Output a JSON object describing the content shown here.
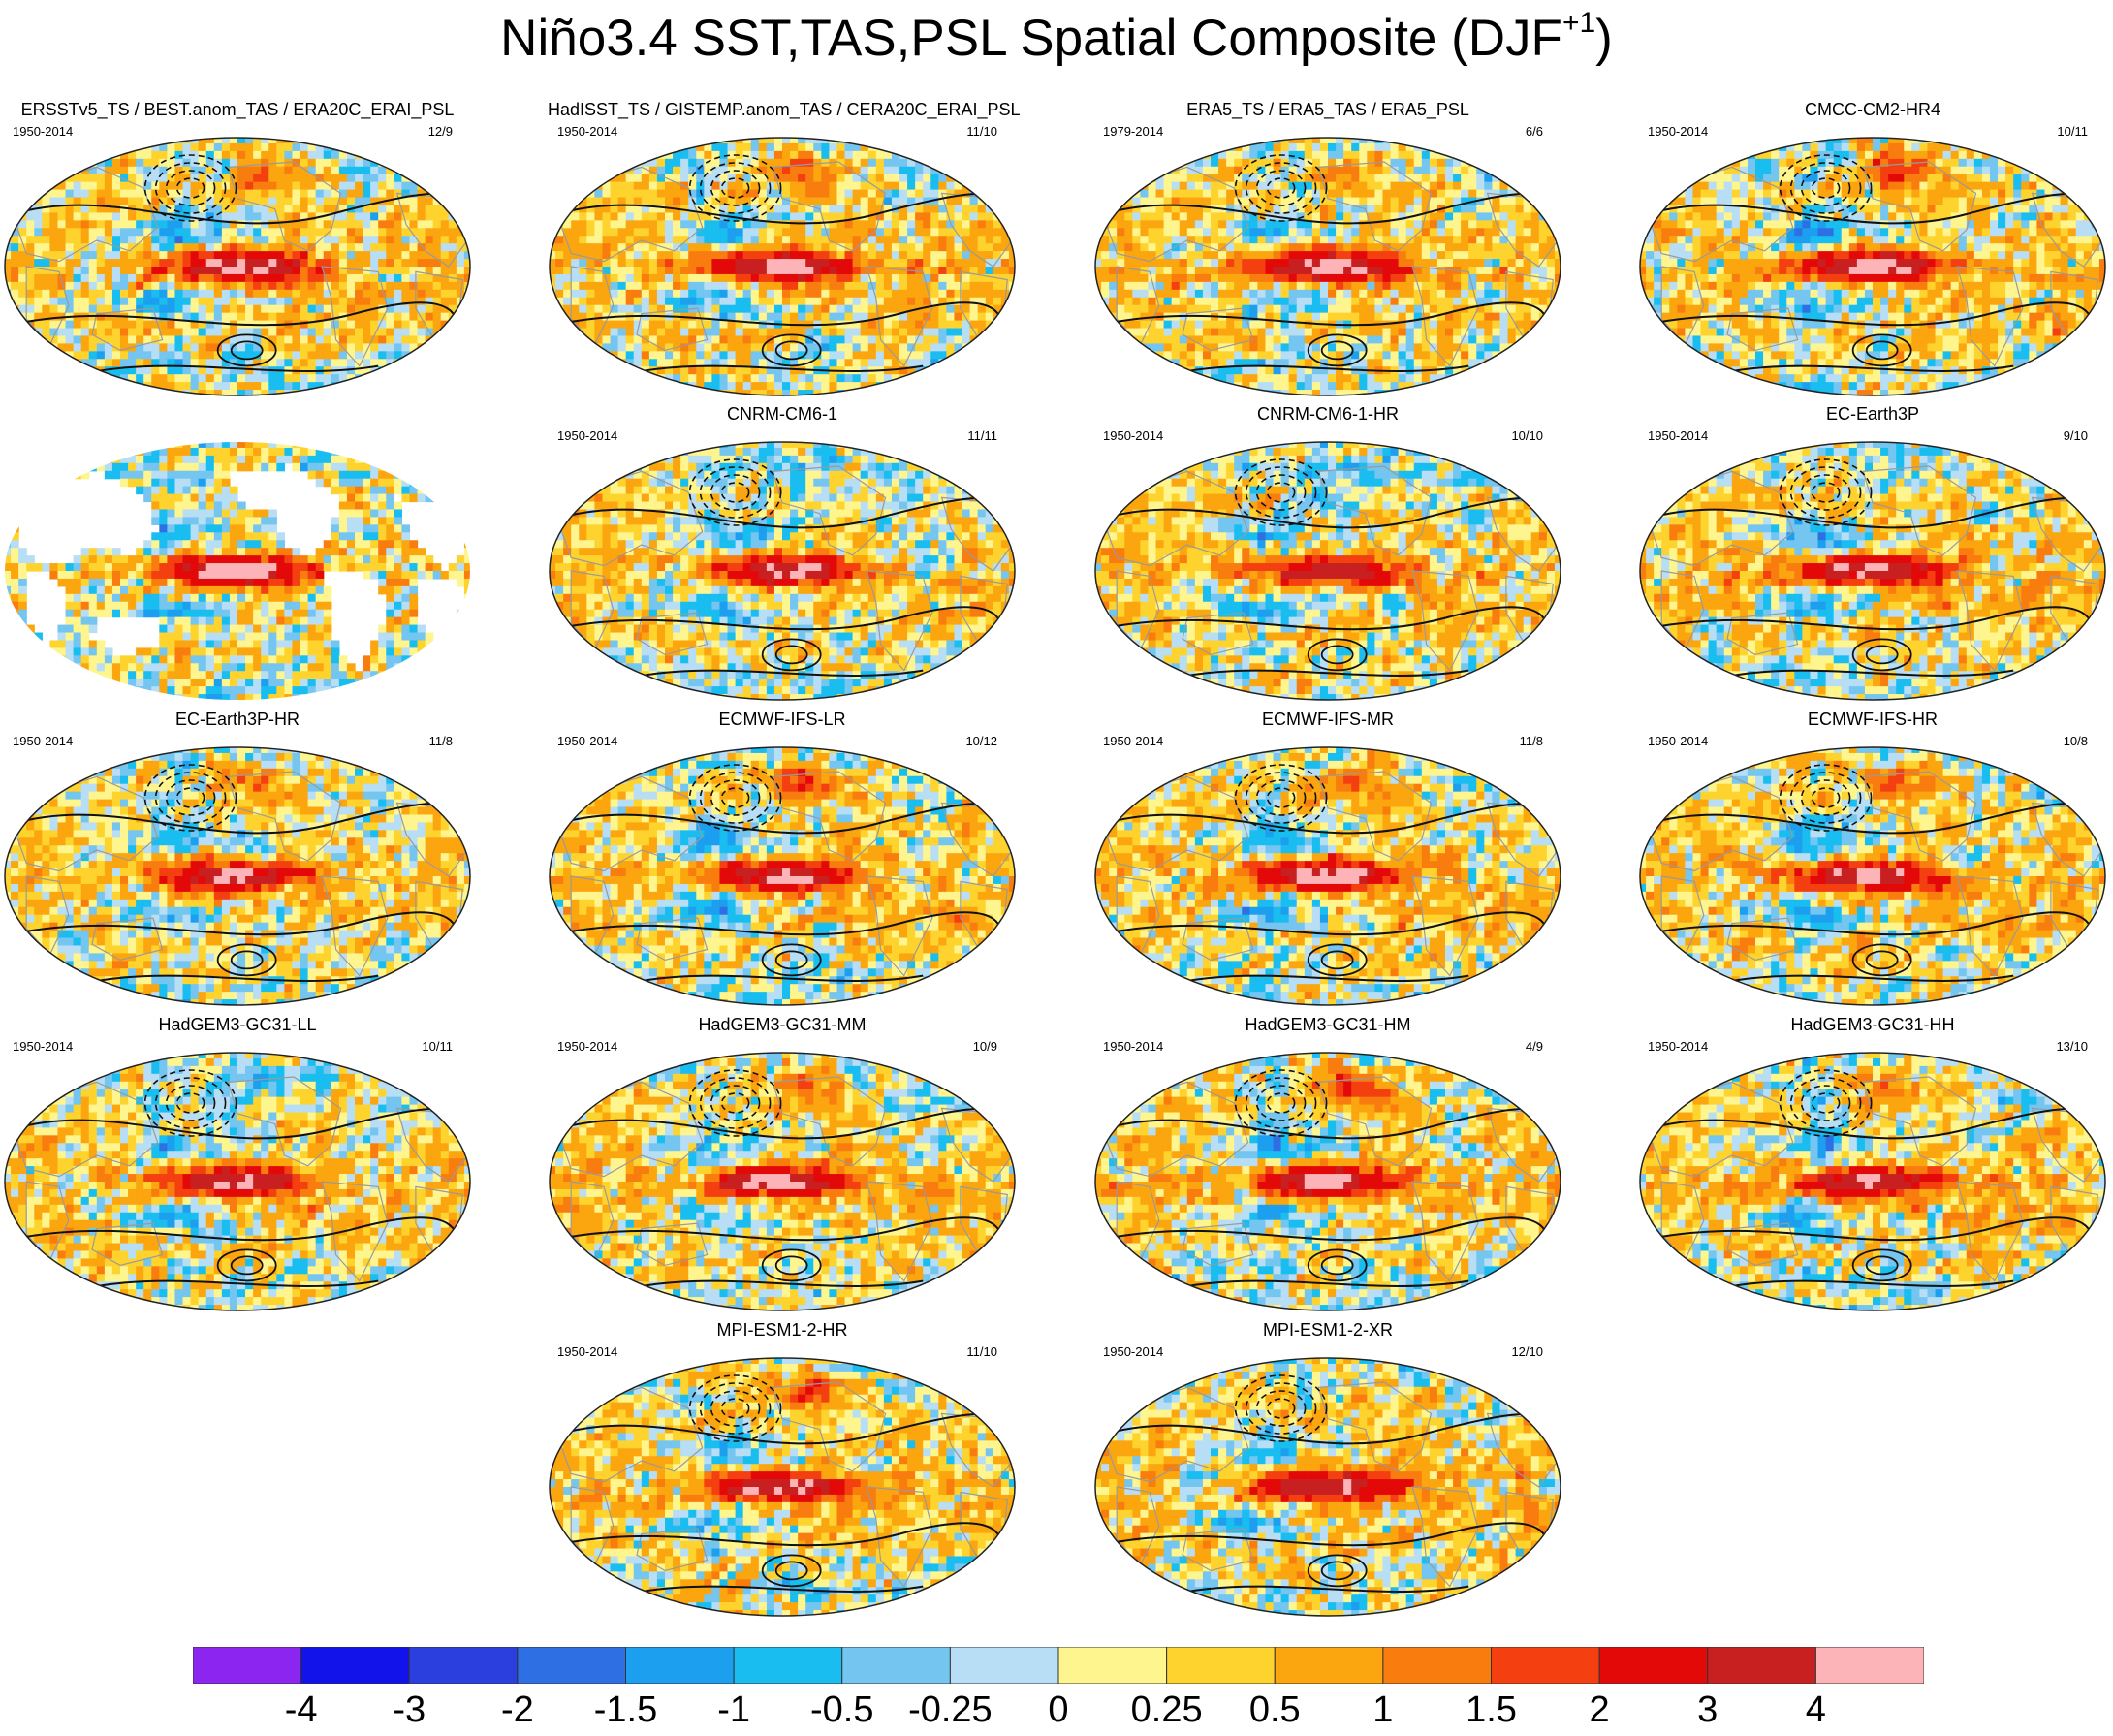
{
  "figure": {
    "title_main": "Niño3.4 SST,TAS,PSL Spatial Composite (DJF",
    "title_sup": "+1",
    "title_close": ")"
  },
  "chart_data": {
    "type": "heatmap",
    "colors": {
      "ocean_blue": "#b7dcf2",
      "land_yellow": "#fef08c",
      "pos_palette": [
        "#fef08c",
        "#fecb32",
        "#fdaa12",
        "#fa8410",
        "#f84910",
        "#e41313",
        "#c61a1a",
        "#fcb6b6"
      ],
      "neg_palette": [
        "#b7dcf2",
        "#62c0f0",
        "#1ba3f3",
        "#2788ec",
        "#2c6ee4",
        "#2b3ee0",
        "#1313f0",
        "#7a1cf2"
      ]
    },
    "panels": [
      {
        "id": "p1",
        "title": "ERSSTv5_TS / BEST.anom_TAS / ERA20C_ERAI_PSL",
        "years": "1950-2014",
        "count": "12/9",
        "contours": true,
        "masked_land": false,
        "seed": 11,
        "nino": 1.0,
        "north": 0.6
      },
      {
        "id": "p2",
        "title": "HadISST_TS / GISTEMP.anom_TAS / CERA20C_ERAI_PSL",
        "years": "1950-2014",
        "count": "11/10",
        "contours": true,
        "masked_land": false,
        "seed": 12,
        "nino": 1.0,
        "north": 0.7
      },
      {
        "id": "p3",
        "title": "ERA5_TS / ERA5_TAS / ERA5_PSL",
        "years": "1979-2014",
        "count": "6/6",
        "contours": true,
        "masked_land": false,
        "seed": 13,
        "nino": 1.05,
        "north": 0.4
      },
      {
        "id": "p4",
        "title": "CMCC-CM2-HR4",
        "years": "1950-2014",
        "count": "10/11",
        "contours": true,
        "masked_land": false,
        "seed": 14,
        "nino": 1.1,
        "north": 0.9
      },
      {
        "id": "p5",
        "title": "",
        "years": "",
        "count": "",
        "contours": false,
        "masked_land": true,
        "seed": 15,
        "nino": 1.1,
        "north": 0.0
      },
      {
        "id": "p6",
        "title": "CNRM-CM6-1",
        "years": "1950-2014",
        "count": "11/11",
        "contours": true,
        "masked_land": false,
        "seed": 16,
        "nino": 0.95,
        "north": -0.6
      },
      {
        "id": "p7",
        "title": "CNRM-CM6-1-HR",
        "years": "1950-2014",
        "count": "10/10",
        "contours": true,
        "masked_land": false,
        "seed": 17,
        "nino": 0.9,
        "north": -0.5
      },
      {
        "id": "p8",
        "title": "EC-Earth3P",
        "years": "1950-2014",
        "count": "9/10",
        "contours": true,
        "masked_land": false,
        "seed": 18,
        "nino": 1.0,
        "north": -0.4
      },
      {
        "id": "p9",
        "title": "EC-Earth3P-HR",
        "years": "1950-2014",
        "count": "11/8",
        "contours": true,
        "masked_land": false,
        "seed": 19,
        "nino": 1.0,
        "north": 0.5
      },
      {
        "id": "p10",
        "title": "ECMWF-IFS-LR",
        "years": "1950-2014",
        "count": "10/12",
        "contours": true,
        "masked_land": false,
        "seed": 20,
        "nino": 0.95,
        "north": 1.0
      },
      {
        "id": "p11",
        "title": "ECMWF-IFS-MR",
        "years": "1950-2014",
        "count": "11/8",
        "contours": true,
        "masked_land": false,
        "seed": 21,
        "nino": 1.0,
        "north": 0.6
      },
      {
        "id": "p12",
        "title": "ECMWF-IFS-HR",
        "years": "1950-2014",
        "count": "10/8",
        "contours": true,
        "masked_land": false,
        "seed": 22,
        "nino": 1.0,
        "north": 0.7
      },
      {
        "id": "p13",
        "title": "HadGEM3-GC31-LL",
        "years": "1950-2014",
        "count": "10/11",
        "contours": true,
        "masked_land": false,
        "seed": 23,
        "nino": 1.0,
        "north": -0.5
      },
      {
        "id": "p14",
        "title": "HadGEM3-GC31-MM",
        "years": "1950-2014",
        "count": "10/9",
        "contours": true,
        "masked_land": false,
        "seed": 24,
        "nino": 1.0,
        "north": 0.6
      },
      {
        "id": "p15",
        "title": "HadGEM3-GC31-HM",
        "years": "1950-2014",
        "count": "4/9",
        "contours": true,
        "masked_land": false,
        "seed": 25,
        "nino": 1.05,
        "north": 0.9
      },
      {
        "id": "p16",
        "title": "HadGEM3-GC31-HH",
        "years": "1950-2014",
        "count": "13/10",
        "contours": true,
        "masked_land": false,
        "seed": 26,
        "nino": 1.0,
        "north": 0.6
      },
      {
        "id": "p17",
        "title": "MPI-ESM1-2-HR",
        "years": "1950-2014",
        "count": "11/10",
        "contours": true,
        "masked_land": false,
        "seed": 27,
        "nino": 1.0,
        "north": 0.8
      },
      {
        "id": "p18",
        "title": "MPI-ESM1-2-XR",
        "years": "1950-2014",
        "count": "12/10",
        "contours": true,
        "masked_land": false,
        "seed": 28,
        "nino": 0.95,
        "north": 0.0
      }
    ],
    "colorbar": {
      "labels": [
        "-4",
        "-3",
        "-2",
        "-1.5",
        "-1",
        "-0.5",
        "-0.25",
        "0",
        "0.25",
        "0.5",
        "1",
        "1.5",
        "2",
        "3",
        "4"
      ],
      "colors": [
        "#8c25ef",
        "#1212ea",
        "#2a3fdd",
        "#2e70e3",
        "#1d9ff0",
        "#19bdf0",
        "#74c5f0",
        "#b7def4",
        "#fef58e",
        "#fed32e",
        "#fba50f",
        "#f97d0e",
        "#f43f10",
        "#e30909",
        "#c82021",
        "#fcb4b8"
      ]
    }
  }
}
